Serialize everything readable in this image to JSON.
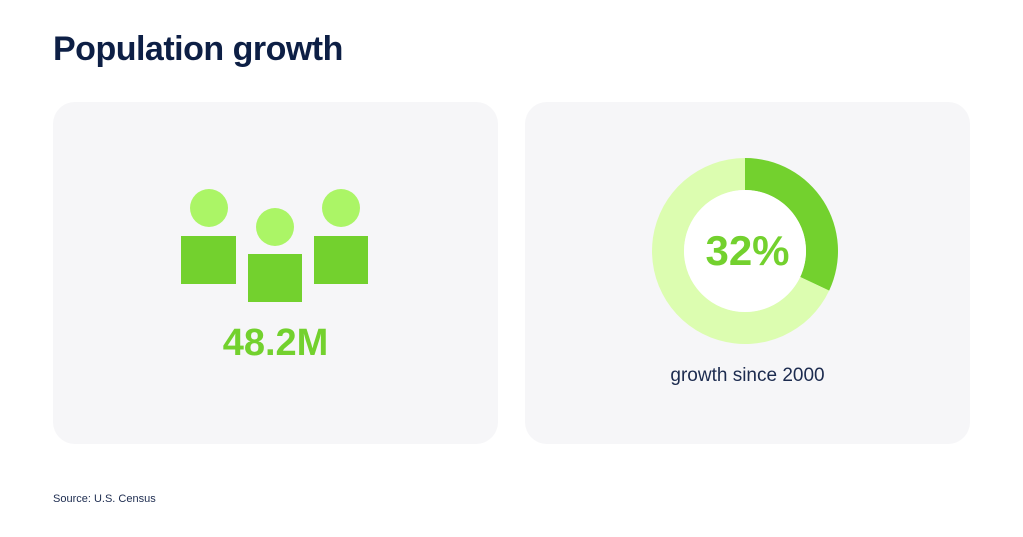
{
  "title": "Population growth",
  "population": {
    "value": "48.2M",
    "icon": "people-icon"
  },
  "chart_data": {
    "type": "pie",
    "variant": "donut",
    "values": [
      32,
      68
    ],
    "center_label": "32%",
    "caption": "growth since 2000"
  },
  "source": "Source: U.S. Census",
  "colors": {
    "accent": "#73d12e",
    "light": "#abf566",
    "track": "#dcfdb0",
    "card": "#f6f6f8",
    "navy": "#0d1f45"
  }
}
